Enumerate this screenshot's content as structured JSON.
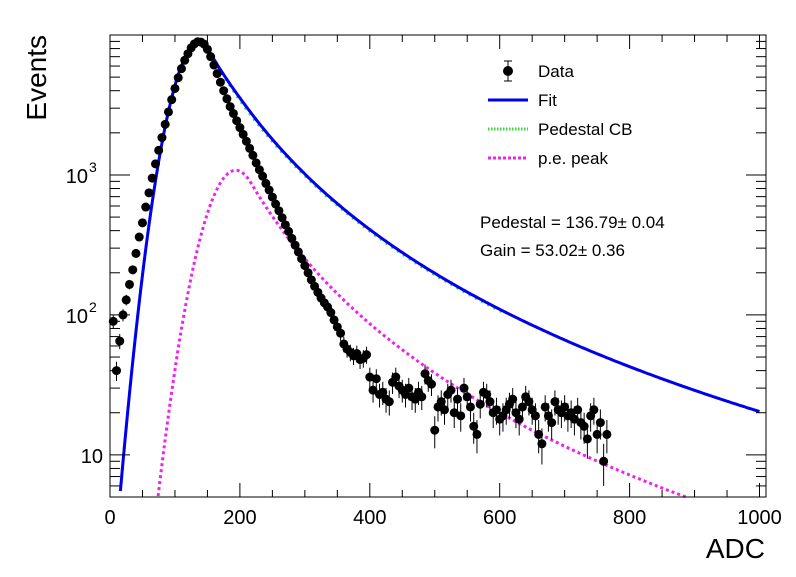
{
  "chart_data": {
    "type": "scatter",
    "title": "",
    "xlabel": "ADC",
    "ylabel": "Events",
    "xlim": [
      0,
      1010
    ],
    "ylim": [
      5,
      10000
    ],
    "yscale": "log",
    "grid": false,
    "legend_position": "top-right",
    "x_ticks": [
      {
        "value": 0,
        "label": "0"
      },
      {
        "value": 200,
        "label": "200"
      },
      {
        "value": 400,
        "label": "400"
      },
      {
        "value": 600,
        "label": "600"
      },
      {
        "value": 800,
        "label": "800"
      },
      {
        "value": 1000,
        "label": "1000"
      }
    ],
    "y_ticks": [
      {
        "value": 10,
        "base": "10",
        "exp": ""
      },
      {
        "value": 100,
        "base": "10",
        "exp": "2"
      },
      {
        "value": 1000,
        "base": "10",
        "exp": "3"
      }
    ],
    "legend": [
      {
        "name": "Data",
        "style": "marker",
        "color": "#000000"
      },
      {
        "name": "Fit",
        "style": "line",
        "color": "#0000ee"
      },
      {
        "name": "Pedestal CB",
        "style": "dotted",
        "color": "#33dd33"
      },
      {
        "name": "p.e. peak",
        "style": "dashed",
        "color": "#ee22ee"
      }
    ],
    "annotations": [
      {
        "text": "Pedestal = 136.79± 0.04"
      },
      {
        "text": "Gain = 53.02± 0.36"
      }
    ],
    "data_points": [
      [
        5,
        90
      ],
      [
        10,
        40
      ],
      [
        15,
        65
      ],
      [
        20,
        100
      ],
      [
        25,
        128
      ],
      [
        30,
        165
      ],
      [
        35,
        210
      ],
      [
        40,
        275
      ],
      [
        45,
        360
      ],
      [
        50,
        455
      ],
      [
        55,
        590
      ],
      [
        60,
        745
      ],
      [
        65,
        950
      ],
      [
        70,
        1200
      ],
      [
        75,
        1500
      ],
      [
        80,
        1850
      ],
      [
        85,
        2300
      ],
      [
        90,
        2820
      ],
      [
        95,
        3450
      ],
      [
        100,
        4150
      ],
      [
        105,
        4950
      ],
      [
        110,
        5750
      ],
      [
        115,
        6600
      ],
      [
        120,
        7350
      ],
      [
        125,
        8100
      ],
      [
        130,
        8650
      ],
      [
        135,
        8950
      ],
      [
        140,
        8900
      ],
      [
        145,
        8600
      ],
      [
        150,
        7900
      ],
      [
        155,
        7000
      ],
      [
        160,
        6100
      ],
      [
        165,
        5300
      ],
      [
        170,
        4600
      ],
      [
        175,
        4000
      ],
      [
        180,
        3500
      ],
      [
        185,
        3080
      ],
      [
        190,
        2750
      ],
      [
        195,
        2440
      ],
      [
        200,
        2180
      ],
      [
        205,
        1950
      ],
      [
        210,
        1740
      ],
      [
        215,
        1550
      ],
      [
        220,
        1380
      ],
      [
        225,
        1220
      ],
      [
        230,
        1090
      ],
      [
        235,
        980
      ],
      [
        240,
        870
      ],
      [
        245,
        780
      ],
      [
        250,
        695
      ],
      [
        255,
        620
      ],
      [
        260,
        555
      ],
      [
        265,
        495
      ],
      [
        270,
        440
      ],
      [
        275,
        395
      ],
      [
        280,
        352
      ],
      [
        285,
        315
      ],
      [
        290,
        282
      ],
      [
        295,
        252
      ],
      [
        300,
        225
      ],
      [
        305,
        200
      ],
      [
        310,
        178
      ],
      [
        315,
        160
      ],
      [
        320,
        145
      ],
      [
        325,
        132
      ],
      [
        330,
        122
      ],
      [
        335,
        114
      ],
      [
        340,
        104
      ],
      [
        345,
        92
      ],
      [
        350,
        82
      ],
      [
        355,
        74
      ],
      [
        360,
        62
      ],
      [
        365,
        57
      ],
      [
        370,
        54
      ],
      [
        375,
        51
      ],
      [
        380,
        53
      ],
      [
        385,
        48
      ],
      [
        390,
        49
      ],
      [
        395,
        52
      ],
      [
        400,
        36
      ],
      [
        405,
        29
      ],
      [
        410,
        35
      ],
      [
        415,
        27
      ],
      [
        420,
        28
      ],
      [
        425,
        25
      ],
      [
        430,
        24
      ],
      [
        435,
        33
      ],
      [
        440,
        36
      ],
      [
        445,
        31
      ],
      [
        450,
        29
      ],
      [
        455,
        27
      ],
      [
        460,
        30
      ],
      [
        465,
        26
      ],
      [
        470,
        25
      ],
      [
        475,
        28
      ],
      [
        480,
        26
      ],
      [
        485,
        38
      ],
      [
        490,
        34
      ],
      [
        495,
        32
      ],
      [
        500,
        15
      ],
      [
        505,
        22
      ],
      [
        510,
        24
      ],
      [
        515,
        21
      ],
      [
        520,
        27
      ],
      [
        525,
        29
      ],
      [
        530,
        20
      ],
      [
        535,
        25
      ],
      [
        540,
        19
      ],
      [
        545,
        30
      ],
      [
        550,
        26
      ],
      [
        555,
        22
      ],
      [
        560,
        16
      ],
      [
        565,
        14
      ],
      [
        570,
        23
      ],
      [
        575,
        28
      ],
      [
        580,
        27
      ],
      [
        585,
        24
      ],
      [
        590,
        20
      ],
      [
        595,
        21
      ],
      [
        600,
        18
      ],
      [
        605,
        19
      ],
      [
        610,
        21
      ],
      [
        615,
        23
      ],
      [
        620,
        25
      ],
      [
        625,
        20
      ],
      [
        630,
        18
      ],
      [
        635,
        22
      ],
      [
        640,
        26
      ],
      [
        645,
        24
      ],
      [
        650,
        21
      ],
      [
        655,
        19
      ],
      [
        660,
        14
      ],
      [
        665,
        12
      ],
      [
        670,
        22
      ],
      [
        675,
        19
      ],
      [
        680,
        17
      ],
      [
        685,
        24
      ],
      [
        690,
        21
      ],
      [
        695,
        20
      ],
      [
        700,
        22
      ],
      [
        705,
        19
      ],
      [
        710,
        20
      ],
      [
        715,
        18
      ],
      [
        720,
        21
      ],
      [
        725,
        17
      ],
      [
        730,
        16
      ],
      [
        735,
        13
      ],
      [
        740,
        19
      ],
      [
        745,
        21
      ],
      [
        750,
        14
      ],
      [
        755,
        17
      ],
      [
        760,
        9
      ],
      [
        765,
        14
      ]
    ]
  }
}
